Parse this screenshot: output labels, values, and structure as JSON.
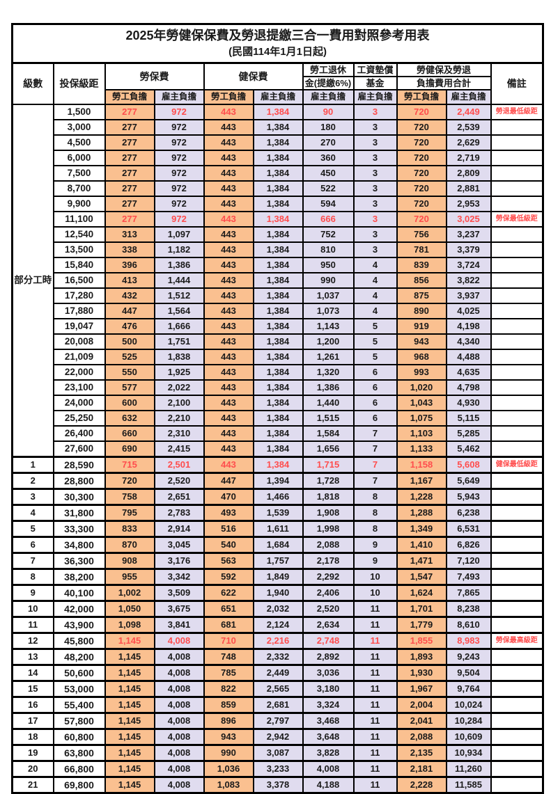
{
  "title": "2025年勞健保保費及勞退提繳三合一費用對照參考用表",
  "subtitle": "(民國114年1月1日起)",
  "group_label": "部分工時",
  "colors": {
    "employee_bg": "#FAC090",
    "employer_bg": "#E0DCEF",
    "highlight_text": "#FF4D4D",
    "border": "#000000"
  },
  "header": {
    "level": "級數",
    "bracket": "投保級距",
    "labor_ins": "勞保費",
    "health_ins": "健保費",
    "pension_line1": "勞工退休",
    "pension_line2": "金(提繳6%)",
    "wage_fund_line1": "工資墊償",
    "wage_fund_line2": "基金",
    "total_line1": "勞健保及勞退",
    "total_line2": "負擔費用合計",
    "note": "備註",
    "employee": "勞工負擔",
    "employer": "雇主負擔"
  },
  "rows": [
    {
      "level": "",
      "bracket": "1,500",
      "labor_emp": "277",
      "labor_er": "972",
      "health_emp": "443",
      "health_er": "1,384",
      "pension_er": "90",
      "wage_er": "3",
      "total_emp": "720",
      "total_er": "2,449",
      "note": "勞退最低級距",
      "highlight": true
    },
    {
      "level": "",
      "bracket": "3,000",
      "labor_emp": "277",
      "labor_er": "972",
      "health_emp": "443",
      "health_er": "1,384",
      "pension_er": "180",
      "wage_er": "3",
      "total_emp": "720",
      "total_er": "2,539",
      "note": "",
      "highlight": false
    },
    {
      "level": "",
      "bracket": "4,500",
      "labor_emp": "277",
      "labor_er": "972",
      "health_emp": "443",
      "health_er": "1,384",
      "pension_er": "270",
      "wage_er": "3",
      "total_emp": "720",
      "total_er": "2,629",
      "note": "",
      "highlight": false
    },
    {
      "level": "",
      "bracket": "6,000",
      "labor_emp": "277",
      "labor_er": "972",
      "health_emp": "443",
      "health_er": "1,384",
      "pension_er": "360",
      "wage_er": "3",
      "total_emp": "720",
      "total_er": "2,719",
      "note": "",
      "highlight": false
    },
    {
      "level": "",
      "bracket": "7,500",
      "labor_emp": "277",
      "labor_er": "972",
      "health_emp": "443",
      "health_er": "1,384",
      "pension_er": "450",
      "wage_er": "3",
      "total_emp": "720",
      "total_er": "2,809",
      "note": "",
      "highlight": false
    },
    {
      "level": "",
      "bracket": "8,700",
      "labor_emp": "277",
      "labor_er": "972",
      "health_emp": "443",
      "health_er": "1,384",
      "pension_er": "522",
      "wage_er": "3",
      "total_emp": "720",
      "total_er": "2,881",
      "note": "",
      "highlight": false
    },
    {
      "level": "",
      "bracket": "9,900",
      "labor_emp": "277",
      "labor_er": "972",
      "health_emp": "443",
      "health_er": "1,384",
      "pension_er": "594",
      "wage_er": "3",
      "total_emp": "720",
      "total_er": "2,953",
      "note": "",
      "highlight": false
    },
    {
      "level": "",
      "bracket": "11,100",
      "labor_emp": "277",
      "labor_er": "972",
      "health_emp": "443",
      "health_er": "1,384",
      "pension_er": "666",
      "wage_er": "3",
      "total_emp": "720",
      "total_er": "3,025",
      "note": "勞保最低級距",
      "highlight": true
    },
    {
      "level": "",
      "bracket": "12,540",
      "labor_emp": "313",
      "labor_er": "1,097",
      "health_emp": "443",
      "health_er": "1,384",
      "pension_er": "752",
      "wage_er": "3",
      "total_emp": "756",
      "total_er": "3,237",
      "note": "",
      "highlight": false
    },
    {
      "level": "",
      "bracket": "13,500",
      "labor_emp": "338",
      "labor_er": "1,182",
      "health_emp": "443",
      "health_er": "1,384",
      "pension_er": "810",
      "wage_er": "3",
      "total_emp": "781",
      "total_er": "3,379",
      "note": "",
      "highlight": false
    },
    {
      "level": "",
      "bracket": "15,840",
      "labor_emp": "396",
      "labor_er": "1,386",
      "health_emp": "443",
      "health_er": "1,384",
      "pension_er": "950",
      "wage_er": "4",
      "total_emp": "839",
      "total_er": "3,724",
      "note": "",
      "highlight": false
    },
    {
      "level": "",
      "bracket": "16,500",
      "labor_emp": "413",
      "labor_er": "1,444",
      "health_emp": "443",
      "health_er": "1,384",
      "pension_er": "990",
      "wage_er": "4",
      "total_emp": "856",
      "total_er": "3,822",
      "note": "",
      "highlight": false
    },
    {
      "level": "",
      "bracket": "17,280",
      "labor_emp": "432",
      "labor_er": "1,512",
      "health_emp": "443",
      "health_er": "1,384",
      "pension_er": "1,037",
      "wage_er": "4",
      "total_emp": "875",
      "total_er": "3,937",
      "note": "",
      "highlight": false
    },
    {
      "level": "",
      "bracket": "17,880",
      "labor_emp": "447",
      "labor_er": "1,564",
      "health_emp": "443",
      "health_er": "1,384",
      "pension_er": "1,073",
      "wage_er": "4",
      "total_emp": "890",
      "total_er": "4,025",
      "note": "",
      "highlight": false
    },
    {
      "level": "",
      "bracket": "19,047",
      "labor_emp": "476",
      "labor_er": "1,666",
      "health_emp": "443",
      "health_er": "1,384",
      "pension_er": "1,143",
      "wage_er": "5",
      "total_emp": "919",
      "total_er": "4,198",
      "note": "",
      "highlight": false
    },
    {
      "level": "",
      "bracket": "20,008",
      "labor_emp": "500",
      "labor_er": "1,751",
      "health_emp": "443",
      "health_er": "1,384",
      "pension_er": "1,200",
      "wage_er": "5",
      "total_emp": "943",
      "total_er": "4,340",
      "note": "",
      "highlight": false
    },
    {
      "level": "",
      "bracket": "21,009",
      "labor_emp": "525",
      "labor_er": "1,838",
      "health_emp": "443",
      "health_er": "1,384",
      "pension_er": "1,261",
      "wage_er": "5",
      "total_emp": "968",
      "total_er": "4,488",
      "note": "",
      "highlight": false
    },
    {
      "level": "",
      "bracket": "22,000",
      "labor_emp": "550",
      "labor_er": "1,925",
      "health_emp": "443",
      "health_er": "1,384",
      "pension_er": "1,320",
      "wage_er": "6",
      "total_emp": "993",
      "total_er": "4,635",
      "note": "",
      "highlight": false
    },
    {
      "level": "",
      "bracket": "23,100",
      "labor_emp": "577",
      "labor_er": "2,022",
      "health_emp": "443",
      "health_er": "1,384",
      "pension_er": "1,386",
      "wage_er": "6",
      "total_emp": "1,020",
      "total_er": "4,798",
      "note": "",
      "highlight": false
    },
    {
      "level": "",
      "bracket": "24,000",
      "labor_emp": "600",
      "labor_er": "2,100",
      "health_emp": "443",
      "health_er": "1,384",
      "pension_er": "1,440",
      "wage_er": "6",
      "total_emp": "1,043",
      "total_er": "4,930",
      "note": "",
      "highlight": false
    },
    {
      "level": "",
      "bracket": "25,250",
      "labor_emp": "632",
      "labor_er": "2,210",
      "health_emp": "443",
      "health_er": "1,384",
      "pension_er": "1,515",
      "wage_er": "6",
      "total_emp": "1,075",
      "total_er": "5,115",
      "note": "",
      "highlight": false
    },
    {
      "level": "",
      "bracket": "26,400",
      "labor_emp": "660",
      "labor_er": "2,310",
      "health_emp": "443",
      "health_er": "1,384",
      "pension_er": "1,584",
      "wage_er": "7",
      "total_emp": "1,103",
      "total_er": "5,285",
      "note": "",
      "highlight": false
    },
    {
      "level": "",
      "bracket": "27,600",
      "labor_emp": "690",
      "labor_er": "2,415",
      "health_emp": "443",
      "health_er": "1,384",
      "pension_er": "1,656",
      "wage_er": "7",
      "total_emp": "1,133",
      "total_er": "5,462",
      "note": "",
      "highlight": false
    },
    {
      "level": "1",
      "bracket": "28,590",
      "labor_emp": "715",
      "labor_er": "2,501",
      "health_emp": "443",
      "health_er": "1,384",
      "pension_er": "1,715",
      "wage_er": "7",
      "total_emp": "1,158",
      "total_er": "5,608",
      "note": "健保最低級距",
      "highlight": true
    },
    {
      "level": "2",
      "bracket": "28,800",
      "labor_emp": "720",
      "labor_er": "2,520",
      "health_emp": "447",
      "health_er": "1,394",
      "pension_er": "1,728",
      "wage_er": "7",
      "total_emp": "1,167",
      "total_er": "5,649",
      "note": "",
      "highlight": false
    },
    {
      "level": "3",
      "bracket": "30,300",
      "labor_emp": "758",
      "labor_er": "2,651",
      "health_emp": "470",
      "health_er": "1,466",
      "pension_er": "1,818",
      "wage_er": "8",
      "total_emp": "1,228",
      "total_er": "5,943",
      "note": "",
      "highlight": false
    },
    {
      "level": "4",
      "bracket": "31,800",
      "labor_emp": "795",
      "labor_er": "2,783",
      "health_emp": "493",
      "health_er": "1,539",
      "pension_er": "1,908",
      "wage_er": "8",
      "total_emp": "1,288",
      "total_er": "6,238",
      "note": "",
      "highlight": false
    },
    {
      "level": "5",
      "bracket": "33,300",
      "labor_emp": "833",
      "labor_er": "2,914",
      "health_emp": "516",
      "health_er": "1,611",
      "pension_er": "1,998",
      "wage_er": "8",
      "total_emp": "1,349",
      "total_er": "6,531",
      "note": "",
      "highlight": false
    },
    {
      "level": "6",
      "bracket": "34,800",
      "labor_emp": "870",
      "labor_er": "3,045",
      "health_emp": "540",
      "health_er": "1,684",
      "pension_er": "2,088",
      "wage_er": "9",
      "total_emp": "1,410",
      "total_er": "6,826",
      "note": "",
      "highlight": false
    },
    {
      "level": "7",
      "bracket": "36,300",
      "labor_emp": "908",
      "labor_er": "3,176",
      "health_emp": "563",
      "health_er": "1,757",
      "pension_er": "2,178",
      "wage_er": "9",
      "total_emp": "1,471",
      "total_er": "7,120",
      "note": "",
      "highlight": false
    },
    {
      "level": "8",
      "bracket": "38,200",
      "labor_emp": "955",
      "labor_er": "3,342",
      "health_emp": "592",
      "health_er": "1,849",
      "pension_er": "2,292",
      "wage_er": "10",
      "total_emp": "1,547",
      "total_er": "7,493",
      "note": "",
      "highlight": false
    },
    {
      "level": "9",
      "bracket": "40,100",
      "labor_emp": "1,002",
      "labor_er": "3,509",
      "health_emp": "622",
      "health_er": "1,940",
      "pension_er": "2,406",
      "wage_er": "10",
      "total_emp": "1,624",
      "total_er": "7,865",
      "note": "",
      "highlight": false
    },
    {
      "level": "10",
      "bracket": "42,000",
      "labor_emp": "1,050",
      "labor_er": "3,675",
      "health_emp": "651",
      "health_er": "2,032",
      "pension_er": "2,520",
      "wage_er": "11",
      "total_emp": "1,701",
      "total_er": "8,238",
      "note": "",
      "highlight": false
    },
    {
      "level": "11",
      "bracket": "43,900",
      "labor_emp": "1,098",
      "labor_er": "3,841",
      "health_emp": "681",
      "health_er": "2,124",
      "pension_er": "2,634",
      "wage_er": "11",
      "total_emp": "1,779",
      "total_er": "8,610",
      "note": "",
      "highlight": false
    },
    {
      "level": "12",
      "bracket": "45,800",
      "labor_emp": "1,145",
      "labor_er": "4,008",
      "health_emp": "710",
      "health_er": "2,216",
      "pension_er": "2,748",
      "wage_er": "11",
      "total_emp": "1,855",
      "total_er": "8,983",
      "note": "勞保最高級距",
      "highlight": true
    },
    {
      "level": "13",
      "bracket": "48,200",
      "labor_emp": "1,145",
      "labor_er": "4,008",
      "health_emp": "748",
      "health_er": "2,332",
      "pension_er": "2,892",
      "wage_er": "11",
      "total_emp": "1,893",
      "total_er": "9,243",
      "note": "",
      "highlight": false
    },
    {
      "level": "14",
      "bracket": "50,600",
      "labor_emp": "1,145",
      "labor_er": "4,008",
      "health_emp": "785",
      "health_er": "2,449",
      "pension_er": "3,036",
      "wage_er": "11",
      "total_emp": "1,930",
      "total_er": "9,504",
      "note": "",
      "highlight": false
    },
    {
      "level": "15",
      "bracket": "53,000",
      "labor_emp": "1,145",
      "labor_er": "4,008",
      "health_emp": "822",
      "health_er": "2,565",
      "pension_er": "3,180",
      "wage_er": "11",
      "total_emp": "1,967",
      "total_er": "9,764",
      "note": "",
      "highlight": false
    },
    {
      "level": "16",
      "bracket": "55,400",
      "labor_emp": "1,145",
      "labor_er": "4,008",
      "health_emp": "859",
      "health_er": "2,681",
      "pension_er": "3,324",
      "wage_er": "11",
      "total_emp": "2,004",
      "total_er": "10,024",
      "note": "",
      "highlight": false
    },
    {
      "level": "17",
      "bracket": "57,800",
      "labor_emp": "1,145",
      "labor_er": "4,008",
      "health_emp": "896",
      "health_er": "2,797",
      "pension_er": "3,468",
      "wage_er": "11",
      "total_emp": "2,041",
      "total_er": "10,284",
      "note": "",
      "highlight": false
    },
    {
      "level": "18",
      "bracket": "60,800",
      "labor_emp": "1,145",
      "labor_er": "4,008",
      "health_emp": "943",
      "health_er": "2,942",
      "pension_er": "3,648",
      "wage_er": "11",
      "total_emp": "2,088",
      "total_er": "10,609",
      "note": "",
      "highlight": false
    },
    {
      "level": "19",
      "bracket": "63,800",
      "labor_emp": "1,145",
      "labor_er": "4,008",
      "health_emp": "990",
      "health_er": "3,087",
      "pension_er": "3,828",
      "wage_er": "11",
      "total_emp": "2,135",
      "total_er": "10,934",
      "note": "",
      "highlight": false
    },
    {
      "level": "20",
      "bracket": "66,800",
      "labor_emp": "1,145",
      "labor_er": "4,008",
      "health_emp": "1,036",
      "health_er": "3,233",
      "pension_er": "4,008",
      "wage_er": "11",
      "total_emp": "2,181",
      "total_er": "11,260",
      "note": "",
      "highlight": false
    },
    {
      "level": "21",
      "bracket": "69,800",
      "labor_emp": "1,145",
      "labor_er": "4,008",
      "health_emp": "1,083",
      "health_er": "3,378",
      "pension_er": "4,188",
      "wage_er": "11",
      "total_emp": "2,228",
      "total_er": "11,585",
      "note": "",
      "highlight": false
    }
  ]
}
